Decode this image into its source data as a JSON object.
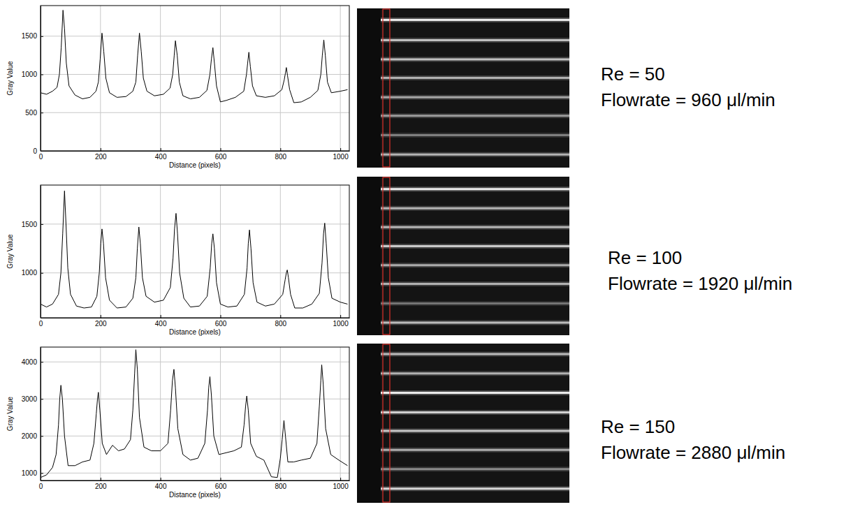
{
  "chart_data": [
    {
      "type": "line",
      "xlabel": "Distance (pixels)",
      "ylabel": "Gray Value",
      "x": [
        0,
        20,
        40,
        55,
        63,
        69,
        75,
        80,
        86,
        95,
        115,
        140,
        165,
        185,
        193,
        199,
        205,
        211,
        218,
        230,
        255,
        285,
        308,
        318,
        324,
        330,
        336,
        343,
        355,
        380,
        410,
        432,
        441,
        446,
        450,
        456,
        463,
        475,
        500,
        530,
        555,
        565,
        570,
        575,
        580,
        587,
        600,
        620,
        650,
        678,
        687,
        691,
        695,
        700,
        707,
        720,
        750,
        780,
        805,
        813,
        817,
        820,
        824,
        831,
        845,
        870,
        900,
        925,
        935,
        940,
        945,
        950,
        957,
        970,
        1000,
        1024
      ],
      "series": [
        {
          "color": "#000000",
          "values": [
            760,
            740,
            780,
            830,
            1000,
            1350,
            1840,
            1600,
            1150,
            850,
            730,
            680,
            700,
            780,
            900,
            1200,
            1540,
            1300,
            950,
            760,
            700,
            710,
            780,
            900,
            1250,
            1540,
            1300,
            950,
            780,
            720,
            740,
            820,
            1000,
            1250,
            1440,
            1250,
            900,
            720,
            680,
            700,
            790,
            1000,
            1200,
            1350,
            1150,
            850,
            640,
            660,
            700,
            780,
            1000,
            1150,
            1290,
            1100,
            850,
            720,
            700,
            720,
            800,
            930,
            1020,
            1090,
            980,
            800,
            630,
            640,
            700,
            790,
            1000,
            1250,
            1450,
            1250,
            900,
            760,
            780,
            800
          ]
        }
      ],
      "xlim": [
        0,
        1030
      ],
      "xticks": [
        0,
        200,
        400,
        600,
        800,
        1000
      ],
      "ylim": [
        0,
        1900
      ],
      "yticks": [
        0,
        500,
        1000,
        1500
      ],
      "grid": true,
      "annotations": [
        "Re = 50",
        "Flowrate = 960 μl/min"
      ]
    },
    {
      "type": "line",
      "xlabel": "Distance (pixels)",
      "ylabel": "Gray Value",
      "x": [
        0,
        20,
        40,
        60,
        68,
        74,
        80,
        85,
        91,
        100,
        120,
        145,
        170,
        188,
        196,
        201,
        205,
        210,
        217,
        230,
        255,
        285,
        308,
        318,
        323,
        328,
        333,
        340,
        352,
        380,
        410,
        433,
        442,
        447,
        452,
        457,
        464,
        478,
        500,
        530,
        556,
        566,
        571,
        575,
        580,
        587,
        600,
        625,
        655,
        680,
        689,
        693,
        697,
        702,
        709,
        722,
        750,
        780,
        808,
        816,
        820,
        823,
        827,
        834,
        848,
        875,
        905,
        930,
        939,
        944,
        948,
        953,
        960,
        972,
        1000,
        1024
      ],
      "series": [
        {
          "color": "#000000",
          "values": [
            680,
            650,
            680,
            780,
            1000,
            1400,
            1840,
            1500,
            1050,
            780,
            660,
            640,
            650,
            760,
            1000,
            1300,
            1450,
            1300,
            950,
            720,
            640,
            650,
            740,
            950,
            1250,
            1470,
            1300,
            950,
            760,
            700,
            720,
            850,
            1150,
            1450,
            1610,
            1400,
            1000,
            740,
            650,
            660,
            760,
            1050,
            1300,
            1400,
            1250,
            900,
            680,
            650,
            660,
            780,
            1050,
            1300,
            1440,
            1250,
            900,
            700,
            660,
            680,
            780,
            930,
            1000,
            1030,
            950,
            780,
            640,
            640,
            680,
            790,
            1100,
            1400,
            1510,
            1300,
            950,
            740,
            700,
            680
          ]
        }
      ],
      "xlim": [
        0,
        1030
      ],
      "xticks": [
        0,
        200,
        400,
        600,
        800,
        1000
      ],
      "ylim": [
        540,
        1900
      ],
      "yticks": [
        1000,
        1500
      ],
      "grid": true,
      "annotations": [
        "Re = 100",
        "Flowrate = 1920 μl/min"
      ]
    },
    {
      "type": "line",
      "xlabel": "Distance (pixels)",
      "ylabel": "Gray Value",
      "x": [
        0,
        20,
        40,
        52,
        60,
        64,
        68,
        73,
        80,
        92,
        115,
        140,
        165,
        178,
        186,
        190,
        193,
        198,
        206,
        220,
        240,
        260,
        280,
        300,
        308,
        314,
        318,
        323,
        330,
        345,
        370,
        400,
        425,
        434,
        440,
        445,
        450,
        458,
        475,
        500,
        525,
        548,
        557,
        561,
        565,
        570,
        578,
        595,
        620,
        645,
        670,
        679,
        684,
        688,
        693,
        701,
        720,
        745,
        770,
        790,
        800,
        806,
        812,
        817,
        825,
        845,
        870,
        900,
        922,
        930,
        935,
        938,
        943,
        951,
        968,
        995,
        1024
      ],
      "series": [
        {
          "color": "#000000",
          "values": [
            880,
            950,
            1150,
            1500,
            2300,
            3000,
            3370,
            3000,
            2000,
            1200,
            1200,
            1300,
            1350,
            1800,
            2600,
            3000,
            3180,
            2700,
            1800,
            1500,
            1750,
            1600,
            1650,
            1900,
            2700,
            3700,
            4330,
            3800,
            2500,
            1700,
            1600,
            1600,
            1800,
            2700,
            3500,
            3800,
            3300,
            2200,
            1500,
            1350,
            1400,
            1800,
            2700,
            3300,
            3600,
            3100,
            2000,
            1500,
            1550,
            1600,
            1700,
            2300,
            2800,
            3080,
            2700,
            1800,
            1450,
            1350,
            900,
            880,
            1400,
            1900,
            2420,
            2000,
            1300,
            1300,
            1350,
            1400,
            1800,
            2800,
            3500,
            3920,
            3400,
            2200,
            1500,
            1350,
            1200
          ]
        }
      ],
      "xlim": [
        0,
        1030
      ],
      "xticks": [
        0,
        200,
        400,
        600,
        800,
        1000
      ],
      "ylim": [
        800,
        4400
      ],
      "yticks": [
        1000,
        2000,
        3000,
        4000
      ],
      "grid": true,
      "annotations": [
        "Re = 150",
        "Flowrate = 2880 μl/min"
      ]
    }
  ]
}
